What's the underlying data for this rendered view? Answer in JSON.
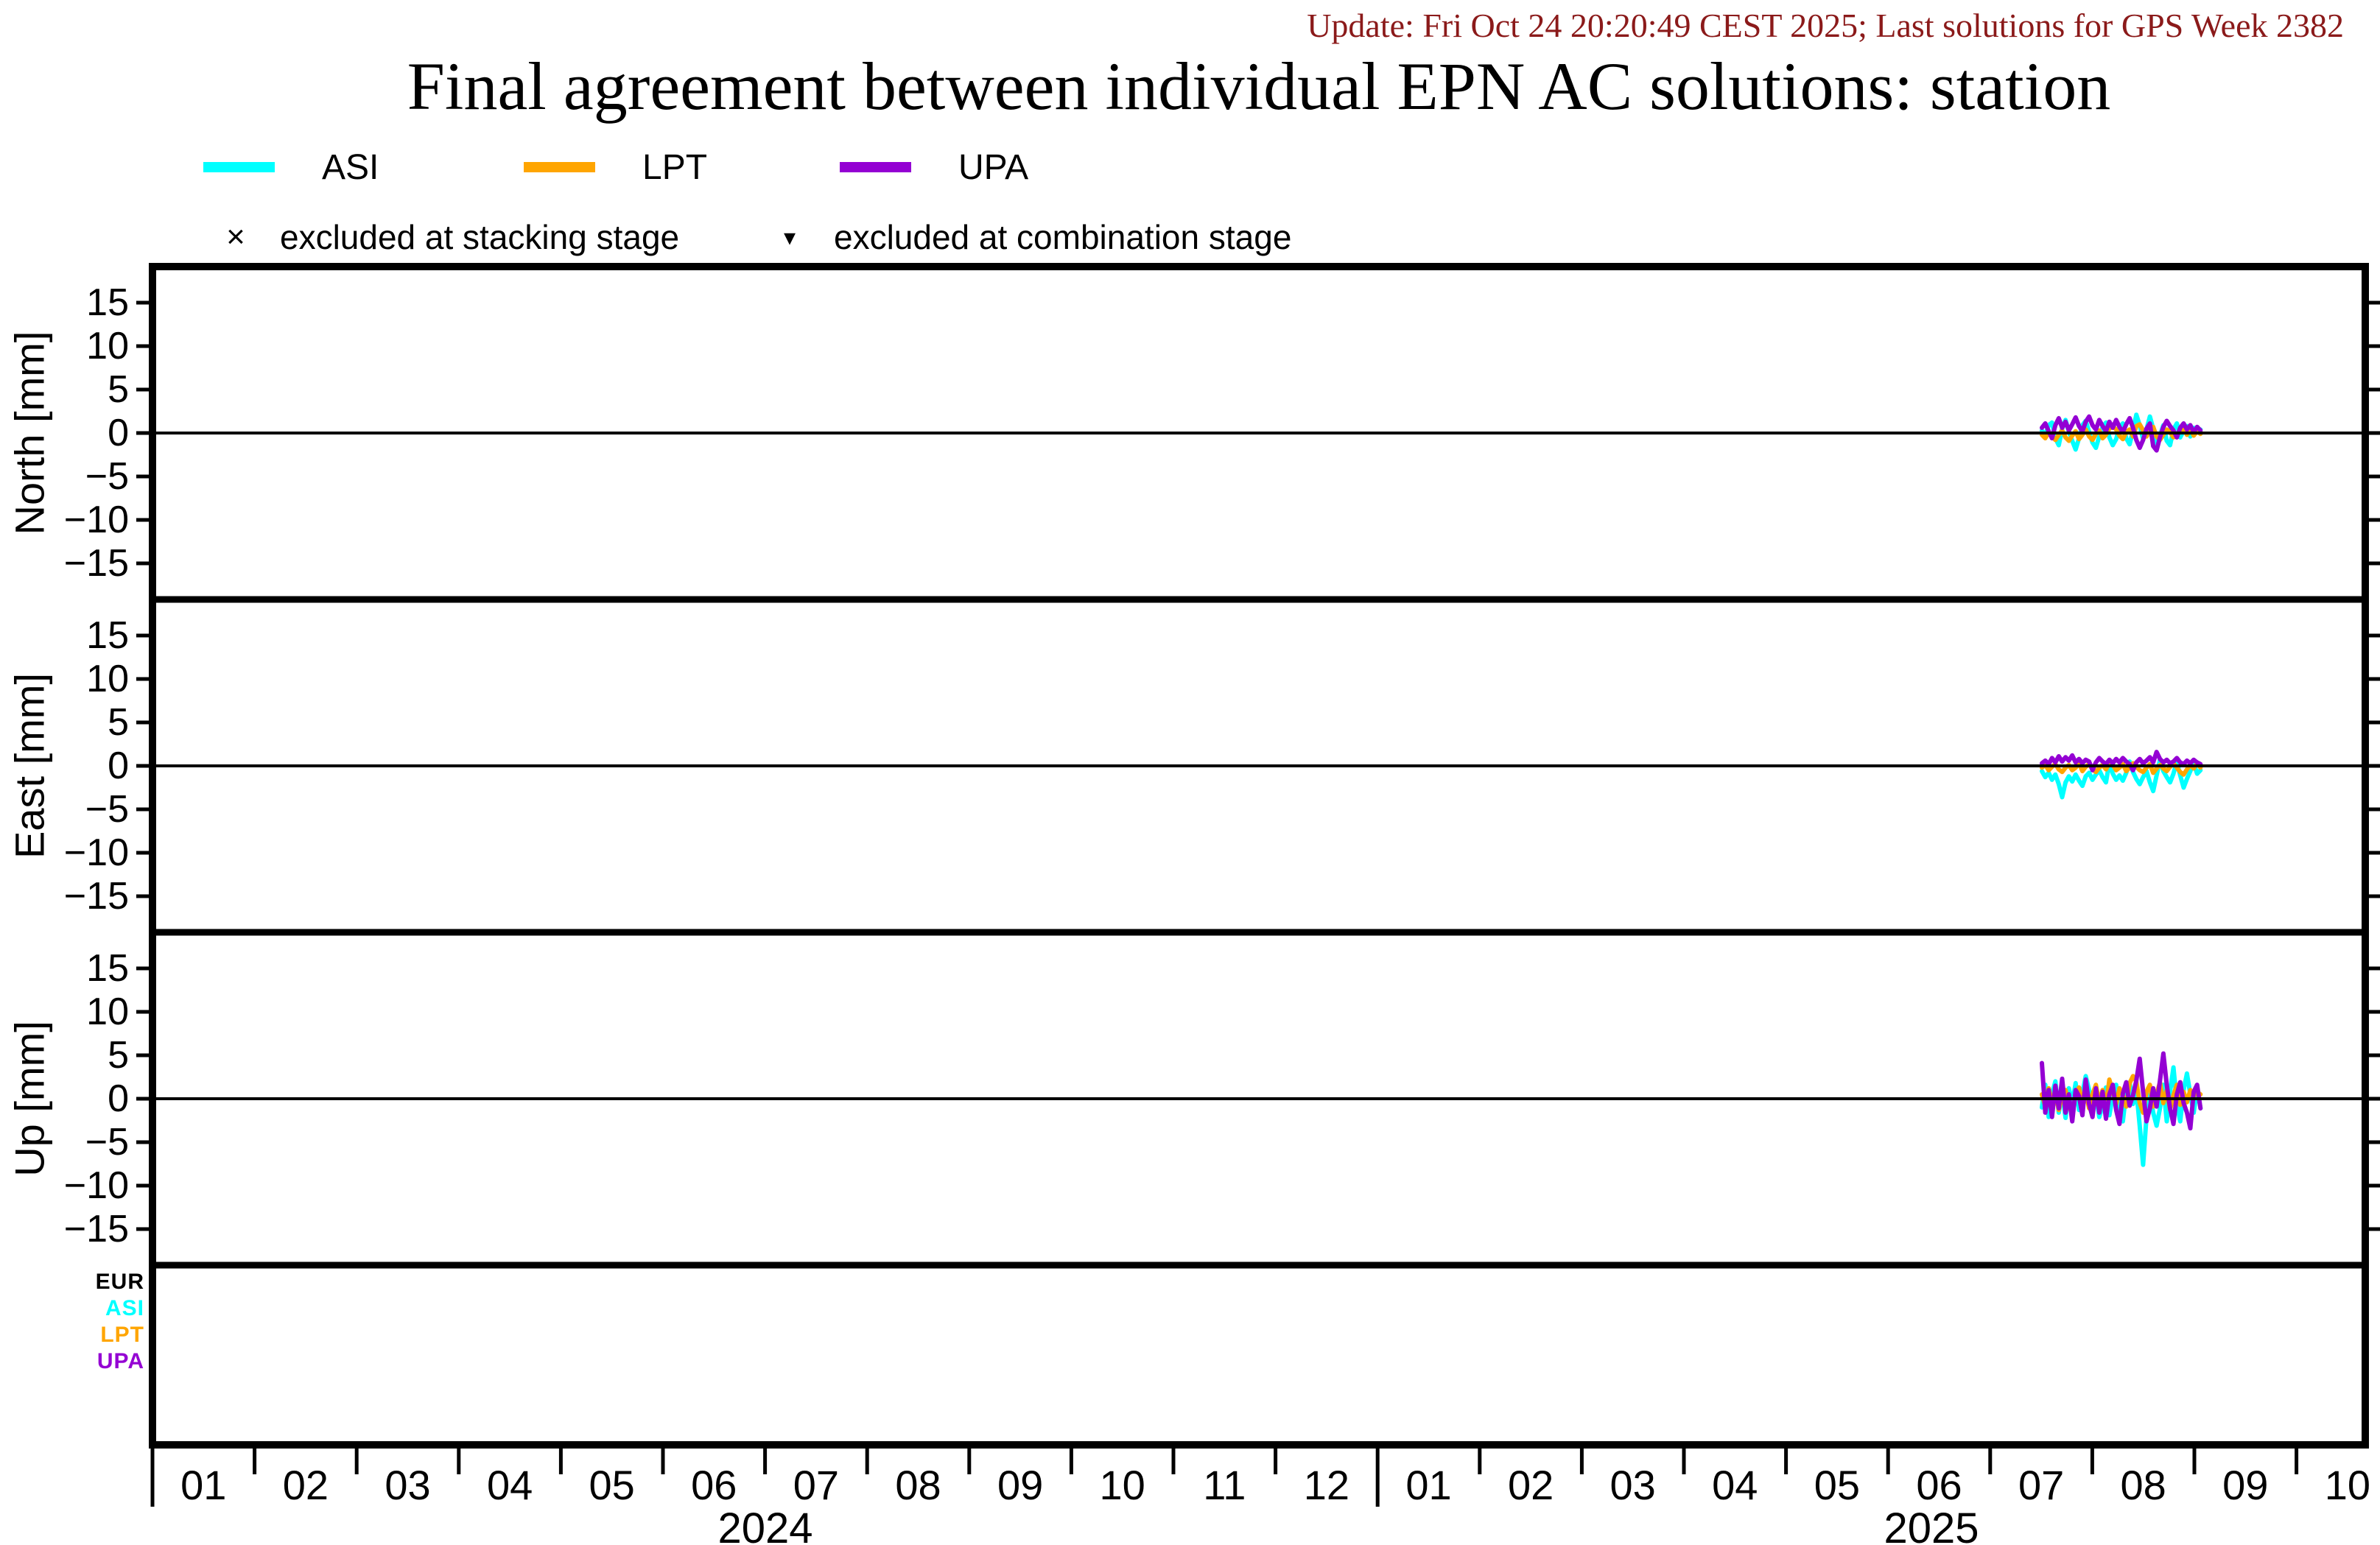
{
  "update_text": "Update: Fri Oct 24 20:20:49 CEST 2025; Last solutions for GPS Week 2382",
  "update_color": "#8B1A1A",
  "title": "Final agreement between individual EPN AC solutions: station",
  "frame_color": "#000000",
  "legend": {
    "series": [
      {
        "label": "ASI",
        "color": "#00FFFF"
      },
      {
        "label": "LPT",
        "color": "#FFA500"
      },
      {
        "label": "UPA",
        "color": "#9400D3"
      }
    ],
    "exclusions": [
      {
        "symbol": "×",
        "label": "excluded at stacking stage"
      },
      {
        "symbol": "▾",
        "label": "excluded at combination stage"
      }
    ]
  },
  "bottom_panel_labels": [
    {
      "label": "EUR",
      "color": "#000000"
    },
    {
      "label": "ASI",
      "color": "#00FFFF"
    },
    {
      "label": "LPT",
      "color": "#FFA500"
    },
    {
      "label": "UPA",
      "color": "#9400D3"
    }
  ],
  "chart_data": {
    "type": "line",
    "title": "Final agreement between individual EPN AC solutions: station",
    "x_axis": {
      "years": [
        {
          "label": "2024",
          "months": [
            "01",
            "02",
            "03",
            "04",
            "05",
            "06",
            "07",
            "08",
            "09",
            "10",
            "11",
            "12"
          ]
        },
        {
          "label": "2025",
          "months": [
            "01",
            "02",
            "03",
            "04",
            "05",
            "06",
            "07",
            "08",
            "09",
            "10"
          ]
        }
      ],
      "data_start": "2025-07 (mid)",
      "data_end": "2025-09 (early)",
      "sampling": "daily"
    },
    "yticks": [
      15,
      10,
      5,
      0,
      -5,
      -10,
      -15
    ],
    "panels": [
      {
        "ylabel": "North [mm]",
        "ylim": [
          -19,
          19
        ],
        "series": [
          {
            "name": "ASI",
            "color": "#00FFFF",
            "values_mm": [
              0.3,
              -0.3,
              0.9,
              1.2,
              -0.6,
              -1.4,
              0.5,
              1.5,
              0.2,
              -0.9,
              -1.9,
              -0.6,
              0.9,
              1.4,
              0.1,
              -1.1,
              -1.7,
              -0.4,
              0.7,
              1.2,
              -0.5,
              -1.4,
              -0.7,
              0.6,
              1.1,
              -0.6,
              -1.3,
              0.3,
              2.1,
              0.9,
              -0.7,
              0.4,
              1.9,
              0.5,
              -1.2,
              -0.3,
              0.9,
              -0.9,
              -1.4,
              0.4,
              1.1,
              -0.5,
              0.3,
              0.8,
              -0.4,
              0.6,
              0.1,
              0.4
            ]
          },
          {
            "name": "LPT",
            "color": "#FFA500",
            "values_mm": [
              -0.2,
              -0.6,
              0.1,
              -0.4,
              -0.8,
              -0.2,
              0.3,
              -0.5,
              -0.9,
              -0.3,
              0.2,
              -0.7,
              -0.2,
              0.4,
              -0.4,
              -0.8,
              -0.1,
              0.3,
              -0.6,
              -0.2,
              0.5,
              0.8,
              0.4,
              -0.3,
              -0.7,
              0.1,
              0.4,
              -0.4,
              0.8,
              1.0,
              0.3,
              -0.4,
              0.3,
              0.7,
              -0.4,
              -0.8,
              -0.2,
              0.4,
              0.1,
              -0.5,
              -0.3,
              0.3,
              0.5,
              -0.2,
              0.4,
              -0.3,
              0.2,
              -0.1
            ]
          },
          {
            "name": "UPA",
            "color": "#9400D3",
            "values_mm": [
              0.6,
              1.1,
              0.2,
              -0.6,
              0.9,
              1.7,
              0.6,
              1.3,
              0.3,
              1.0,
              1.8,
              0.8,
              0.2,
              1.3,
              1.9,
              0.9,
              0.4,
              1.5,
              0.8,
              0.2,
              1.3,
              0.6,
              1.5,
              0.7,
              0.1,
              1.0,
              1.7,
              0.6,
              -0.8,
              -1.7,
              -0.8,
              0.5,
              1.1,
              -1.5,
              -2.0,
              -0.5,
              0.7,
              1.4,
              0.8,
              0.3,
              -0.5,
              0.6,
              1.1,
              0.4,
              0.9,
              0.1,
              0.7,
              0.3
            ]
          }
        ]
      },
      {
        "ylabel": "East [mm]",
        "ylim": [
          -19,
          19
        ],
        "series": [
          {
            "name": "ASI",
            "color": "#00FFFF",
            "values_mm": [
              -0.6,
              -1.3,
              -0.8,
              -1.6,
              -1.0,
              -2.1,
              -3.6,
              -1.9,
              -1.2,
              -1.8,
              -1.0,
              -1.7,
              -2.3,
              -1.2,
              -0.8,
              -1.6,
              -1.0,
              -0.5,
              -1.3,
              -1.9,
              0.4,
              -0.9,
              -1.6,
              -1.1,
              -1.7,
              -0.8,
              0.5,
              -0.7,
              -1.5,
              -2.1,
              -1.3,
              -0.6,
              -1.9,
              -2.9,
              -1.1,
              0.7,
              -0.6,
              -1.3,
              -1.9,
              -0.9,
              0.5,
              -1.1,
              -2.5,
              -1.5,
              -0.6,
              0.3,
              -0.9,
              -0.5
            ]
          },
          {
            "name": "LPT",
            "color": "#FFA500",
            "values_mm": [
              -0.2,
              0.1,
              -0.5,
              -0.1,
              0.2,
              -0.4,
              -0.7,
              -0.2,
              0.1,
              -0.5,
              -0.2,
              0.3,
              -0.6,
              -0.1,
              0.2,
              -0.4,
              -0.7,
              -0.2,
              0.1,
              -0.4,
              0.3,
              0.1,
              -0.5,
              -0.2,
              0.2,
              -0.6,
              -0.2,
              0.3,
              -0.1,
              -0.5,
              -0.7,
              -0.2,
              0.2,
              -0.8,
              -0.3,
              0.1,
              -0.3,
              -0.6,
              -0.1,
              0.3,
              -0.2,
              -0.7,
              -1.0,
              -0.4,
              0.1,
              -0.3,
              0.3,
              -0.2
            ]
          },
          {
            "name": "UPA",
            "color": "#9400D3",
            "values_mm": [
              0.3,
              0.6,
              0.2,
              0.9,
              0.4,
              1.1,
              0.5,
              1.0,
              0.6,
              1.2,
              0.4,
              0.8,
              0.3,
              0.7,
              0.5,
              -0.5,
              0.4,
              0.9,
              0.5,
              0.2,
              0.7,
              0.3,
              0.8,
              0.4,
              0.9,
              0.5,
              0.2,
              -0.5,
              0.4,
              0.8,
              0.3,
              0.6,
              1.0,
              0.4,
              1.6,
              0.8,
              0.4,
              0.7,
              0.3,
              0.5,
              0.9,
              0.4,
              0.2,
              0.6,
              0.3,
              0.7,
              0.4,
              0.2
            ]
          }
        ]
      },
      {
        "ylabel": "Up [mm]",
        "ylim": [
          -19,
          19
        ],
        "series": [
          {
            "name": "ASI",
            "color": "#00FFFF",
            "values_mm": [
              -1.0,
              1.6,
              -2.1,
              0.5,
              2.0,
              -1.6,
              0.8,
              -2.2,
              1.2,
              -0.6,
              1.8,
              -1.3,
              0.6,
              2.6,
              1.0,
              -1.6,
              0.5,
              -2.1,
              -0.8,
              1.3,
              -1.9,
              0.4,
              1.6,
              -1.1,
              -2.6,
              0.8,
              1.9,
              -0.6,
              1.0,
              -3.1,
              -7.6,
              -2.1,
              0.5,
              -1.6,
              -3.1,
              -1.1,
              1.6,
              -2.6,
              0.8,
              3.6,
              -0.5,
              -2.6,
              1.0,
              2.9,
              0.5,
              -1.6,
              1.2,
              -1.1
            ]
          },
          {
            "name": "LPT",
            "color": "#FFA500",
            "values_mm": [
              0.5,
              -0.9,
              1.2,
              -0.4,
              0.8,
              -1.3,
              0.4,
              1.0,
              -0.7,
              -1.9,
              0.6,
              1.3,
              -0.5,
              0.8,
              -1.1,
              0.5,
              1.6,
              -0.5,
              1.0,
              -0.9,
              2.2,
              0.8,
              -0.6,
              1.2,
              0.4,
              -0.9,
              1.8,
              2.6,
              2.0,
              -0.5,
              -1.6,
              0.8,
              1.6,
              -0.9,
              0.5,
              1.9,
              -0.5,
              1.0,
              -1.3,
              0.4,
              1.6,
              -0.7,
              0.8,
              -0.4,
              1.0,
              0.3,
              0.8,
              0.5
            ]
          },
          {
            "name": "UPA",
            "color": "#9400D3",
            "values_mm": [
              4.1,
              -1.6,
              1.0,
              -2.1,
              1.5,
              -1.1,
              2.3,
              -1.6,
              0.5,
              -2.6,
              1.0,
              0.3,
              -1.9,
              2.2,
              -0.6,
              -2.1,
              1.2,
              -1.6,
              0.8,
              -2.3,
              0.5,
              1.6,
              -1.3,
              -2.9,
              0.6,
              1.9,
              -0.8,
              0.4,
              2.1,
              4.6,
              0.8,
              -2.6,
              -1.1,
              1.2,
              -0.9,
              2.1,
              5.2,
              1.6,
              -1.1,
              -2.9,
              0.5,
              1.9,
              -0.5,
              -1.6,
              -3.4,
              0.8,
              1.6,
              -1.1
            ]
          }
        ]
      }
    ],
    "bottom_panel": {
      "rows": [
        "EUR",
        "ASI",
        "LPT",
        "UPA"
      ],
      "markers": []
    },
    "legend_position": "top-left",
    "grid": "zero-line only"
  }
}
